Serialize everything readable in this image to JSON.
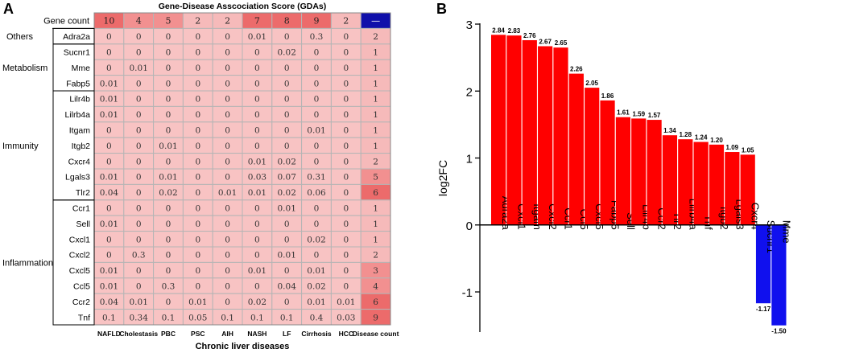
{
  "panel_labels": {
    "a": "A",
    "b": "B"
  },
  "colors": {
    "cell": "#f8c3c3",
    "count_light": "#f6baba",
    "count_mid": "#f29090",
    "count_dark": "#ec6b6b",
    "corner": "#1010aa",
    "grid": "#b5b5b5",
    "up_bar": "#ff0000",
    "down_bar": "#1010ee"
  },
  "chart_data": [
    {
      "type": "heatmap",
      "title": "Gene-Disease Asscociation Score (GDAs)",
      "xlabel": "Chronic liver diseases",
      "row_header_label": "Gene count",
      "columns": [
        "NAFLD",
        "Cholestasis",
        "PBC",
        "PSC",
        "AIH",
        "NASH",
        "LF",
        "Cirrhosis",
        "HCC",
        "Disease count"
      ],
      "gene_counts": [
        "10",
        "4",
        "5",
        "2",
        "2",
        "7",
        "8",
        "9",
        "2",
        "—"
      ],
      "groups": [
        {
          "name": "Others",
          "genes": [
            "Adra2a"
          ]
        },
        {
          "name": "Metabolism",
          "genes": [
            "Sucnr1",
            "Mme",
            "Fabp5"
          ]
        },
        {
          "name": "Immunity",
          "genes": [
            "Lilr4b",
            "Lilrb4a",
            "Itgam",
            "Itgb2",
            "Cxcr4",
            "Lgals3",
            "Tlr2"
          ]
        },
        {
          "name": "Inflammation",
          "genes": [
            "Ccr1",
            "Sell",
            "Cxcl1",
            "Cxcl2",
            "Cxcl5",
            "Ccl5",
            "Ccr2",
            "Tnf"
          ]
        }
      ],
      "rows": [
        {
          "gene": "Adra2a",
          "values": [
            "0",
            "0",
            "0",
            "0",
            "0",
            "0.01",
            "0",
            "0.3",
            "0"
          ],
          "disease_count": "2"
        },
        {
          "gene": "Sucnr1",
          "values": [
            "0",
            "0",
            "0",
            "0",
            "0",
            "0",
            "0.02",
            "0",
            "0"
          ],
          "disease_count": "1"
        },
        {
          "gene": "Mme",
          "values": [
            "0",
            "0.01",
            "0",
            "0",
            "0",
            "0",
            "0",
            "0",
            "0"
          ],
          "disease_count": "1"
        },
        {
          "gene": "Fabp5",
          "values": [
            "0.01",
            "0",
            "0",
            "0",
            "0",
            "0",
            "0",
            "0",
            "0"
          ],
          "disease_count": "1"
        },
        {
          "gene": "Lilr4b",
          "values": [
            "0.01",
            "0",
            "0",
            "0",
            "0",
            "0",
            "0",
            "0",
            "0"
          ],
          "disease_count": "1"
        },
        {
          "gene": "Lilrb4a",
          "values": [
            "0.01",
            "0",
            "0",
            "0",
            "0",
            "0",
            "0",
            "0",
            "0"
          ],
          "disease_count": "1"
        },
        {
          "gene": "Itgam",
          "values": [
            "0",
            "0",
            "0",
            "0",
            "0",
            "0",
            "0",
            "0.01",
            "0"
          ],
          "disease_count": "1"
        },
        {
          "gene": "Itgb2",
          "values": [
            "0",
            "0",
            "0.01",
            "0",
            "0",
            "0",
            "0",
            "0",
            "0"
          ],
          "disease_count": "1"
        },
        {
          "gene": "Cxcr4",
          "values": [
            "0",
            "0",
            "0",
            "0",
            "0",
            "0.01",
            "0.02",
            "0",
            "0"
          ],
          "disease_count": "2"
        },
        {
          "gene": "Lgals3",
          "values": [
            "0.01",
            "0",
            "0.01",
            "0",
            "0",
            "0.03",
            "0.07",
            "0.31",
            "0"
          ],
          "disease_count": "5"
        },
        {
          "gene": "Tlr2",
          "values": [
            "0.04",
            "0",
            "0.02",
            "0",
            "0.01",
            "0.01",
            "0.02",
            "0.06",
            "0"
          ],
          "disease_count": "6"
        },
        {
          "gene": "Ccr1",
          "values": [
            "0",
            "0",
            "0",
            "0",
            "0",
            "0",
            "0.01",
            "0",
            "0"
          ],
          "disease_count": "1"
        },
        {
          "gene": "Sell",
          "values": [
            "0.01",
            "0",
            "0",
            "0",
            "0",
            "0",
            "0",
            "0",
            "0"
          ],
          "disease_count": "1"
        },
        {
          "gene": "Cxcl1",
          "values": [
            "0",
            "0",
            "0",
            "0",
            "0",
            "0",
            "0",
            "0.02",
            "0"
          ],
          "disease_count": "1"
        },
        {
          "gene": "Cxcl2",
          "values": [
            "0",
            "0.3",
            "0",
            "0",
            "0",
            "0",
            "0.01",
            "0",
            "0"
          ],
          "disease_count": "2"
        },
        {
          "gene": "Cxcl5",
          "values": [
            "0.01",
            "0",
            "0",
            "0",
            "0",
            "0.01",
            "0",
            "0.01",
            "0"
          ],
          "disease_count": "3"
        },
        {
          "gene": "Ccl5",
          "values": [
            "0.01",
            "0",
            "0.3",
            "0",
            "0",
            "0",
            "0.04",
            "0.02",
            "0"
          ],
          "disease_count": "4"
        },
        {
          "gene": "Ccr2",
          "values": [
            "0.04",
            "0.01",
            "0",
            "0.01",
            "0",
            "0.02",
            "0",
            "0.01",
            "0.01"
          ],
          "disease_count": "6"
        },
        {
          "gene": "Tnf",
          "values": [
            "0.1",
            "0.34",
            "0.1",
            "0.05",
            "0.1",
            "0.1",
            "0.1",
            "0.4",
            "0.03"
          ],
          "disease_count": "9"
        }
      ]
    },
    {
      "type": "bar",
      "title": "",
      "xlabel": "",
      "ylabel": "log2FC",
      "ylim": [
        -1.6,
        3
      ],
      "yticks": [
        -1,
        0,
        1,
        2,
        3
      ],
      "categories": [
        "Adra2a",
        "Cxcl1",
        "Itgam",
        "Cxcl2",
        "Ccr1",
        "Ccl5",
        "Cxcl5",
        "Fabp5",
        "Sell",
        "Lilr4b",
        "Ccr2",
        "Tlr2",
        "Lilrb4a",
        "Tnf",
        "Itgb2",
        "Lgals3",
        "Cxcr4",
        "Sucnr1",
        "Mme"
      ],
      "values": [
        2.84,
        2.83,
        2.76,
        2.67,
        2.65,
        2.26,
        2.05,
        1.86,
        1.61,
        1.59,
        1.57,
        1.34,
        1.28,
        1.24,
        1.2,
        1.09,
        1.05,
        -1.17,
        -1.5
      ],
      "value_labels": [
        "2.84",
        "2.83",
        "2.76",
        "2.67",
        "2.65",
        "2.26",
        "2.05",
        "1.86",
        "1.61",
        "1.59",
        "1.57",
        "1.34",
        "1.28",
        "1.24",
        "1.20",
        "1.09",
        "1.05",
        "-1.17",
        "-1.50"
      ]
    }
  ]
}
